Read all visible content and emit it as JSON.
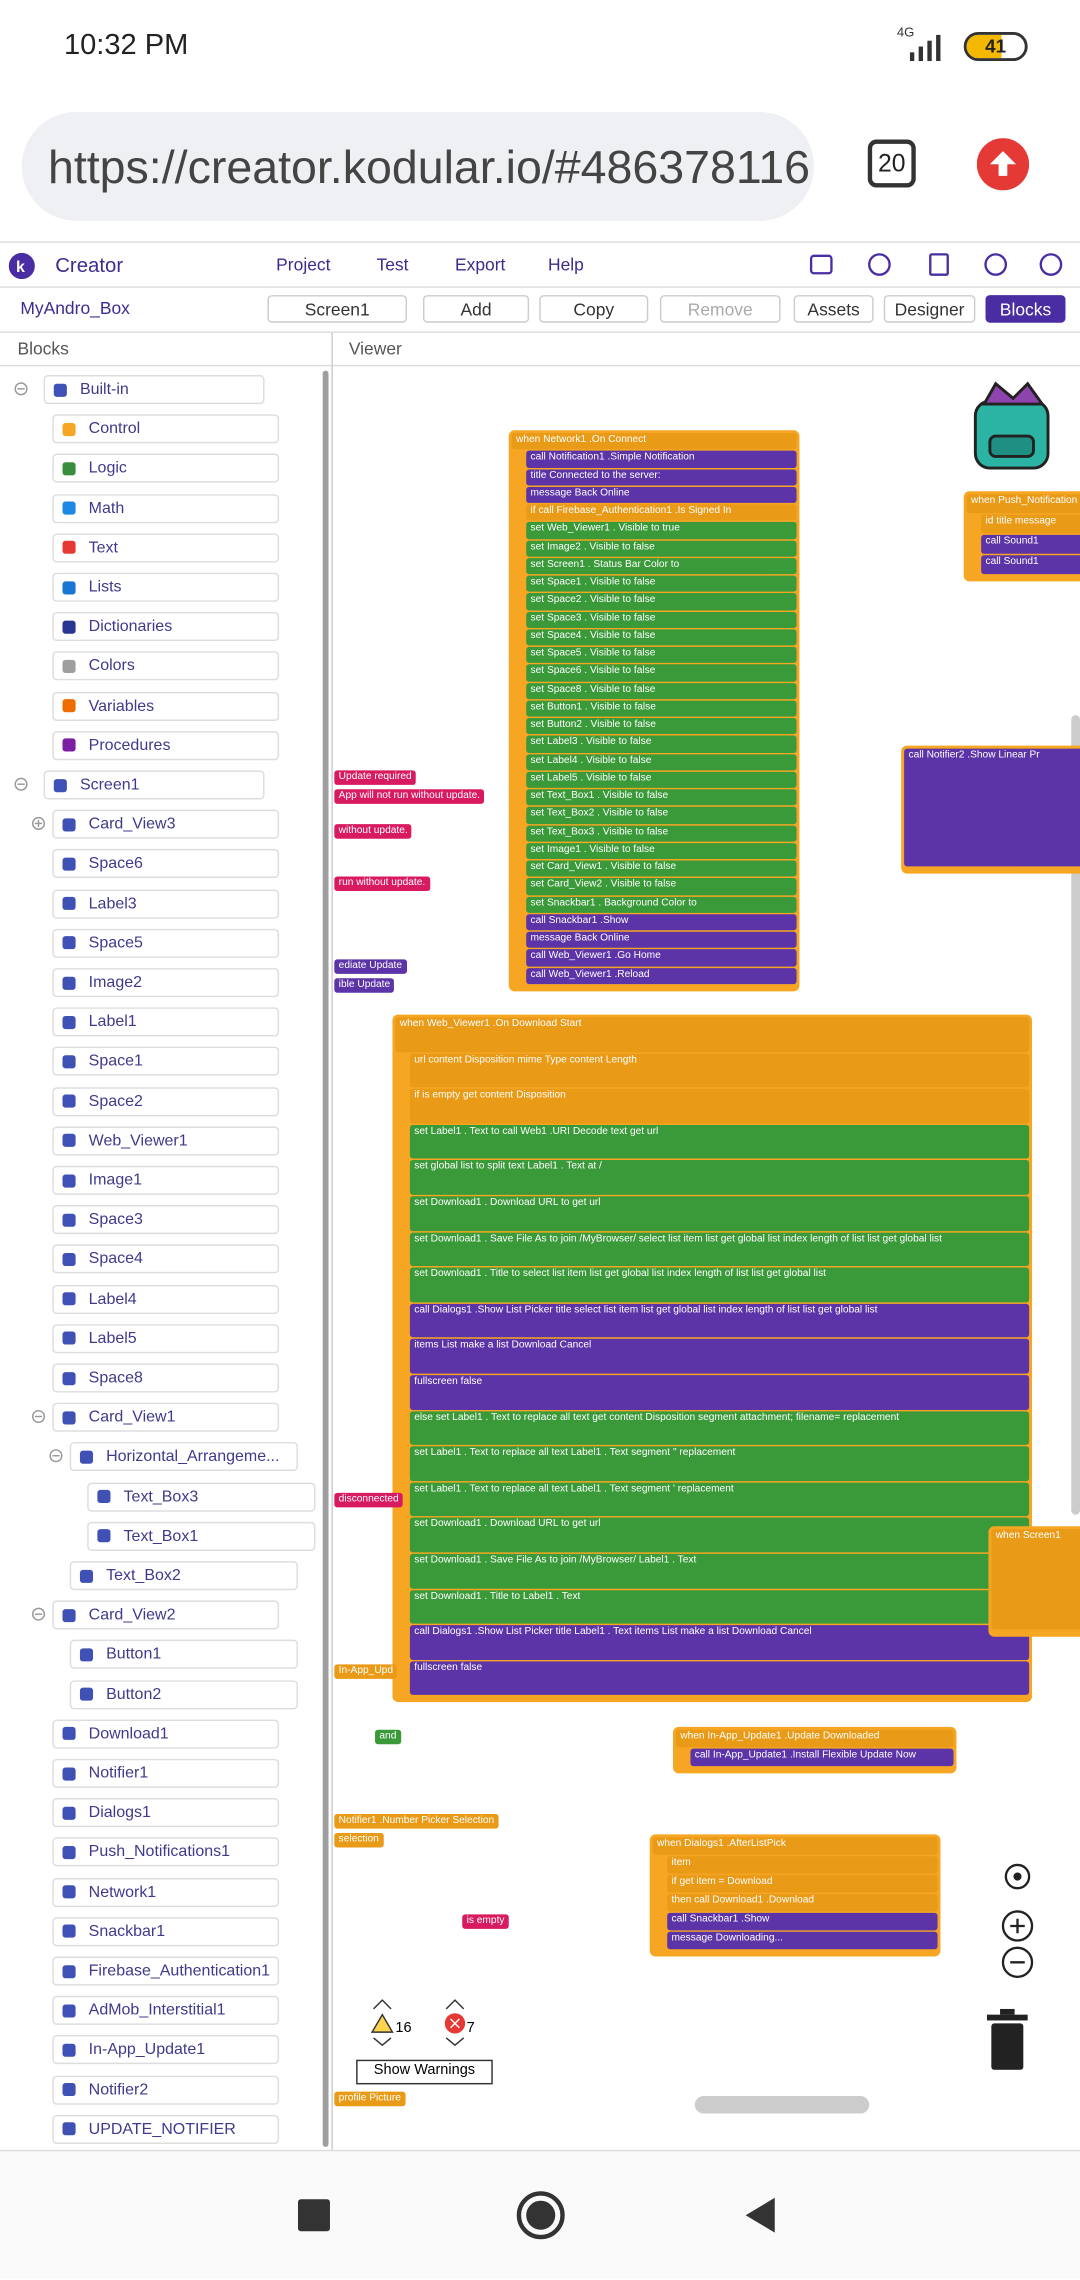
{
  "status": {
    "time": "10:32 PM",
    "network": "4G",
    "battery": "41"
  },
  "browser": {
    "url": "https://creator.kodular.io/#486378116",
    "tabs": "20"
  },
  "header": {
    "brand": "Creator",
    "nav": [
      "Project",
      "Test",
      "Export",
      "Help"
    ]
  },
  "toolbar": {
    "project": "MyAndro_Box",
    "buttons": [
      "Screen1",
      "Add",
      "Copy",
      "Remove",
      "Assets",
      "Designer",
      "Blocks"
    ]
  },
  "blocks_panel": {
    "title": "Blocks",
    "tree": [
      {
        "label": "Built-in",
        "children": [
          {
            "label": "Control"
          },
          {
            "label": "Logic"
          },
          {
            "label": "Math"
          },
          {
            "label": "Text"
          },
          {
            "label": "Lists"
          },
          {
            "label": "Dictionaries"
          },
          {
            "label": "Colors"
          },
          {
            "label": "Variables"
          },
          {
            "label": "Procedures"
          }
        ]
      },
      {
        "label": "Screen1",
        "children": [
          {
            "label": "Card_View3",
            "expanded": false
          },
          {
            "label": "Space6"
          },
          {
            "label": "Label3"
          },
          {
            "label": "Space5"
          },
          {
            "label": "Image2"
          },
          {
            "label": "Label1"
          },
          {
            "label": "Space1"
          },
          {
            "label": "Space2"
          },
          {
            "label": "Web_Viewer1"
          },
          {
            "label": "Image1"
          },
          {
            "label": "Space3"
          },
          {
            "label": "Space4"
          },
          {
            "label": "Label4"
          },
          {
            "label": "Label5"
          },
          {
            "label": "Space8"
          },
          {
            "label": "Card_View1",
            "children": [
              {
                "label": "Horizontal_Arrangeme...",
                "children": [
                  {
                    "label": "Text_Box3"
                  },
                  {
                    "label": "Text_Box1"
                  }
                ]
              },
              {
                "label": "Text_Box2"
              }
            ]
          },
          {
            "label": "Card_View2",
            "children": [
              {
                "label": "Button1"
              },
              {
                "label": "Button2"
              }
            ]
          },
          {
            "label": "Download1"
          },
          {
            "label": "Notifier1"
          },
          {
            "label": "Dialogs1"
          },
          {
            "label": "Push_Notifications1"
          },
          {
            "label": "Network1"
          },
          {
            "label": "Snackbar1"
          },
          {
            "label": "Firebase_Authentication1"
          },
          {
            "label": "AdMob_Interstitial1"
          },
          {
            "label": "In-App_Update1"
          },
          {
            "label": "Notifier2"
          },
          {
            "label": "UPDATE_NOTIFIER"
          }
        ]
      }
    ]
  },
  "viewer": {
    "title": "Viewer",
    "blocks": [
      {
        "rows": [
          "when Network1 .On Connect",
          "call Notification1 .Simple Notification",
          "title Connected to the server:",
          "message Back Online",
          "if call Firebase_Authentication1 .Is Signed In",
          "set Web_Viewer1 . Visible to true",
          "set Image2 . Visible to false",
          "set Screen1 . Status Bar Color to",
          "set Space1 . Visible to false",
          "set Space2 . Visible to false",
          "set Space3 . Visible to false",
          "set Space4 . Visible to false",
          "set Space5 . Visible to false",
          "set Space6 . Visible to false",
          "set Space8 . Visible to false",
          "set Button1 . Visible to false",
          "set Button2 . Visible to false",
          "set Label3 . Visible to false",
          "set Label4 . Visible to false",
          "set Label5 . Visible to false",
          "set Text_Box1 . Visible to false",
          "set Text_Box2 . Visible to false",
          "set Text_Box3 . Visible to false",
          "set Image1 . Visible to false",
          "set Card_View1 . Visible to false",
          "set Card_View2 . Visible to false",
          "set Snackbar1 . Background Color to",
          "call Snackbar1 .Show",
          "message Back Online",
          "call Web_Viewer1 .Go Home",
          "call Web_Viewer1 .Reload"
        ]
      },
      {
        "rows": [
          "when Web_Viewer1 .On Download Start",
          "url content Disposition mime Type content Length",
          "if is empty get content Disposition",
          "set Label1 . Text to call Web1 .URI Decode text get url",
          "set global list to split text Label1 . Text at /",
          "set Download1 . Download URL to get url",
          "set Download1 . Save File As to join /MyBrowser/ select list item list get global list index length of list list get global list",
          "set Download1 . Title to select list item list get global list index length of list list get global list",
          "call Dialogs1 .Show List Picker title select list item list get global list index length of list list get global list",
          "items List make a list Download Cancel",
          "fullscreen false",
          "else set Label1 . Text to replace all text get content Disposition segment attachment; filename= replacement",
          "set Label1 . Text to replace all text Label1 . Text segment \" replacement",
          "set Label1 . Text to replace all text Label1 . Text segment ' replacement",
          "set Download1 . Download URL to get url",
          "set Download1 . Save File As to join /MyBrowser/ Label1 . Text",
          "set Download1 . Title to Label1 . Text",
          "call Dialogs1 .Show List Picker title Label1 . Text items List make a list Download Cancel",
          "fullscreen false"
        ]
      },
      {
        "rows": [
          "when Push_Notification",
          "id title message",
          "call Sound1",
          "call Sound1"
        ]
      },
      {
        "rows": [
          "call Notifier2 .Show Linear Pr"
        ]
      },
      {
        "rows": [
          "when In-App_Update1 .Update Downloaded",
          "call In-App_Update1 .Install Flexible Update Now"
        ]
      },
      {
        "rows": [
          "when Dialogs1 .AfterListPick",
          "item",
          "if get item = Download",
          "then call Download1 .Download",
          "call Snackbar1 .Show",
          "message Downloading..."
        ]
      },
      {
        "rows": [
          "when Screen1"
        ]
      }
    ],
    "fragments": [
      "Update required",
      "App will not run without update.",
      "without update.",
      "run without update.",
      "ediate Update",
      "ible Update",
      "disconnected",
      "In-App_Upd",
      "Notifier1 .Number Picker Selection",
      "selection",
      "is empty",
      "and",
      "profile Picture"
    ],
    "warnings": "16",
    "errors": "7",
    "warnings_button": "Show Warnings"
  }
}
